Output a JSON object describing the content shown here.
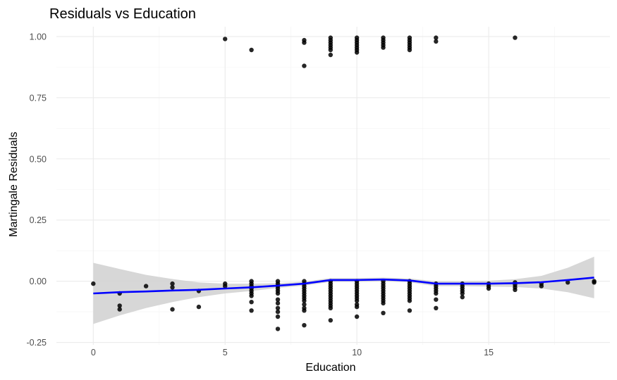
{
  "chart_data": {
    "type": "scatter",
    "title": "Residuals vs Education",
    "xlabel": "Education",
    "ylabel": "Martingale Residuals",
    "xlim": [
      -1.4,
      19.6
    ],
    "ylim": [
      -0.26,
      1.04
    ],
    "x_ticks": [
      0,
      5,
      10,
      15
    ],
    "x_tick_labels": [
      "0",
      "5",
      "10",
      "15"
    ],
    "y_ticks": [
      -0.25,
      0,
      0.25,
      0.5,
      0.75,
      1
    ],
    "y_tick_labels": [
      "-0.25",
      "0.00",
      "0.25",
      "0.50",
      "0.75",
      "1.00"
    ],
    "grid": true,
    "colors": {
      "points": "#000000",
      "smooth_line": "#0000ff",
      "confidence_band": "#d3d3d3"
    },
    "points": [
      {
        "x": 0,
        "y": -0.01
      },
      {
        "x": 1,
        "y": -0.05
      },
      {
        "x": 1,
        "y": -0.1
      },
      {
        "x": 1,
        "y": -0.115
      },
      {
        "x": 2,
        "y": -0.02
      },
      {
        "x": 3,
        "y": -0.01
      },
      {
        "x": 3,
        "y": -0.025
      },
      {
        "x": 3,
        "y": -0.115
      },
      {
        "x": 4,
        "y": -0.04
      },
      {
        "x": 4,
        "y": -0.105
      },
      {
        "x": 5,
        "y": -0.01
      },
      {
        "x": 5,
        "y": -0.02
      },
      {
        "x": 5,
        "y": 0.99
      },
      {
        "x": 6,
        "y": 0.0
      },
      {
        "x": 6,
        "y": -0.01
      },
      {
        "x": 6,
        "y": -0.02
      },
      {
        "x": 6,
        "y": -0.03
      },
      {
        "x": 6,
        "y": -0.04
      },
      {
        "x": 6,
        "y": -0.05
      },
      {
        "x": 6,
        "y": -0.06
      },
      {
        "x": 6,
        "y": -0.085
      },
      {
        "x": 6,
        "y": -0.12
      },
      {
        "x": 6,
        "y": 0.945
      },
      {
        "x": 7,
        "y": 0.0
      },
      {
        "x": 7,
        "y": -0.01
      },
      {
        "x": 7,
        "y": -0.02
      },
      {
        "x": 7,
        "y": -0.03
      },
      {
        "x": 7,
        "y": -0.04
      },
      {
        "x": 7,
        "y": -0.05
      },
      {
        "x": 7,
        "y": -0.075
      },
      {
        "x": 7,
        "y": -0.09
      },
      {
        "x": 7,
        "y": -0.11
      },
      {
        "x": 7,
        "y": -0.125
      },
      {
        "x": 7,
        "y": -0.145
      },
      {
        "x": 7,
        "y": -0.195
      },
      {
        "x": 8,
        "y": 0.0
      },
      {
        "x": 8,
        "y": -0.01
      },
      {
        "x": 8,
        "y": -0.02
      },
      {
        "x": 8,
        "y": -0.03
      },
      {
        "x": 8,
        "y": -0.04
      },
      {
        "x": 8,
        "y": -0.05
      },
      {
        "x": 8,
        "y": -0.06
      },
      {
        "x": 8,
        "y": -0.07
      },
      {
        "x": 8,
        "y": -0.08
      },
      {
        "x": 8,
        "y": -0.095
      },
      {
        "x": 8,
        "y": -0.11
      },
      {
        "x": 8,
        "y": -0.12
      },
      {
        "x": 8,
        "y": -0.18
      },
      {
        "x": 8,
        "y": 0.985
      },
      {
        "x": 8,
        "y": 0.975
      },
      {
        "x": 8,
        "y": 0.88
      },
      {
        "x": 9,
        "y": 0.0
      },
      {
        "x": 9,
        "y": -0.01
      },
      {
        "x": 9,
        "y": -0.02
      },
      {
        "x": 9,
        "y": -0.03
      },
      {
        "x": 9,
        "y": -0.04
      },
      {
        "x": 9,
        "y": -0.05
      },
      {
        "x": 9,
        "y": -0.06
      },
      {
        "x": 9,
        "y": -0.07
      },
      {
        "x": 9,
        "y": -0.08
      },
      {
        "x": 9,
        "y": -0.09
      },
      {
        "x": 9,
        "y": -0.1
      },
      {
        "x": 9,
        "y": -0.11
      },
      {
        "x": 9,
        "y": -0.16
      },
      {
        "x": 9,
        "y": 0.995
      },
      {
        "x": 9,
        "y": 0.985
      },
      {
        "x": 9,
        "y": 0.975
      },
      {
        "x": 9,
        "y": 0.965
      },
      {
        "x": 9,
        "y": 0.955
      },
      {
        "x": 9,
        "y": 0.945
      },
      {
        "x": 9,
        "y": 0.925
      },
      {
        "x": 10,
        "y": 0.0
      },
      {
        "x": 10,
        "y": -0.01
      },
      {
        "x": 10,
        "y": -0.02
      },
      {
        "x": 10,
        "y": -0.03
      },
      {
        "x": 10,
        "y": -0.04
      },
      {
        "x": 10,
        "y": -0.05
      },
      {
        "x": 10,
        "y": -0.06
      },
      {
        "x": 10,
        "y": -0.07
      },
      {
        "x": 10,
        "y": -0.08
      },
      {
        "x": 10,
        "y": -0.095
      },
      {
        "x": 10,
        "y": -0.105
      },
      {
        "x": 10,
        "y": -0.145
      },
      {
        "x": 10,
        "y": 0.995
      },
      {
        "x": 10,
        "y": 0.985
      },
      {
        "x": 10,
        "y": 0.975
      },
      {
        "x": 10,
        "y": 0.965
      },
      {
        "x": 10,
        "y": 0.955
      },
      {
        "x": 10,
        "y": 0.945
      },
      {
        "x": 10,
        "y": 0.935
      },
      {
        "x": 11,
        "y": 0.0
      },
      {
        "x": 11,
        "y": -0.01
      },
      {
        "x": 11,
        "y": -0.02
      },
      {
        "x": 11,
        "y": -0.03
      },
      {
        "x": 11,
        "y": -0.04
      },
      {
        "x": 11,
        "y": -0.05
      },
      {
        "x": 11,
        "y": -0.06
      },
      {
        "x": 11,
        "y": -0.07
      },
      {
        "x": 11,
        "y": -0.08
      },
      {
        "x": 11,
        "y": -0.09
      },
      {
        "x": 11,
        "y": -0.13
      },
      {
        "x": 11,
        "y": 0.995
      },
      {
        "x": 11,
        "y": 0.985
      },
      {
        "x": 11,
        "y": 0.975
      },
      {
        "x": 11,
        "y": 0.965
      },
      {
        "x": 11,
        "y": 0.955
      },
      {
        "x": 12,
        "y": 0.0
      },
      {
        "x": 12,
        "y": -0.01
      },
      {
        "x": 12,
        "y": -0.02
      },
      {
        "x": 12,
        "y": -0.03
      },
      {
        "x": 12,
        "y": -0.04
      },
      {
        "x": 12,
        "y": -0.05
      },
      {
        "x": 12,
        "y": -0.06
      },
      {
        "x": 12,
        "y": -0.07
      },
      {
        "x": 12,
        "y": -0.08
      },
      {
        "x": 12,
        "y": -0.12
      },
      {
        "x": 12,
        "y": 0.995
      },
      {
        "x": 12,
        "y": 0.985
      },
      {
        "x": 12,
        "y": 0.975
      },
      {
        "x": 12,
        "y": 0.965
      },
      {
        "x": 12,
        "y": 0.955
      },
      {
        "x": 12,
        "y": 0.945
      },
      {
        "x": 13,
        "y": -0.01
      },
      {
        "x": 13,
        "y": -0.02
      },
      {
        "x": 13,
        "y": -0.03
      },
      {
        "x": 13,
        "y": -0.04
      },
      {
        "x": 13,
        "y": -0.05
      },
      {
        "x": 13,
        "y": -0.075
      },
      {
        "x": 13,
        "y": -0.11
      },
      {
        "x": 13,
        "y": 0.995
      },
      {
        "x": 13,
        "y": 0.98
      },
      {
        "x": 14,
        "y": -0.01
      },
      {
        "x": 14,
        "y": -0.02
      },
      {
        "x": 14,
        "y": -0.03
      },
      {
        "x": 14,
        "y": -0.04
      },
      {
        "x": 14,
        "y": -0.05
      },
      {
        "x": 14,
        "y": -0.065
      },
      {
        "x": 15,
        "y": -0.01
      },
      {
        "x": 15,
        "y": -0.02
      },
      {
        "x": 15,
        "y": -0.03
      },
      {
        "x": 16,
        "y": -0.005
      },
      {
        "x": 16,
        "y": -0.015
      },
      {
        "x": 16,
        "y": -0.025
      },
      {
        "x": 16,
        "y": -0.035
      },
      {
        "x": 16,
        "y": 0.995
      },
      {
        "x": 17,
        "y": -0.01
      },
      {
        "x": 17,
        "y": -0.02
      },
      {
        "x": 18,
        "y": -0.005
      },
      {
        "x": 19,
        "y": 0.0
      },
      {
        "x": 19,
        "y": -0.005
      }
    ],
    "smooth": {
      "x": [
        0,
        1,
        2,
        3,
        4,
        5,
        6,
        7,
        8,
        9,
        10,
        11,
        12,
        13,
        14,
        15,
        16,
        17,
        18,
        19
      ],
      "y": [
        -0.05,
        -0.045,
        -0.042,
        -0.038,
        -0.035,
        -0.03,
        -0.025,
        -0.018,
        -0.01,
        0.005,
        0.005,
        0.007,
        0.003,
        -0.01,
        -0.01,
        -0.01,
        -0.008,
        -0.004,
        0.005,
        0.015
      ],
      "lower": [
        -0.175,
        -0.14,
        -0.11,
        -0.085,
        -0.065,
        -0.05,
        -0.04,
        -0.028,
        -0.018,
        -0.003,
        -0.003,
        -0.001,
        -0.005,
        -0.02,
        -0.02,
        -0.022,
        -0.024,
        -0.03,
        -0.045,
        -0.07
      ],
      "upper": [
        0.075,
        0.05,
        0.026,
        0.009,
        -0.005,
        -0.01,
        -0.01,
        -0.008,
        -0.002,
        0.013,
        0.013,
        0.015,
        0.011,
        0.0,
        0.0,
        0.002,
        0.008,
        0.022,
        0.055,
        0.1
      ]
    }
  }
}
